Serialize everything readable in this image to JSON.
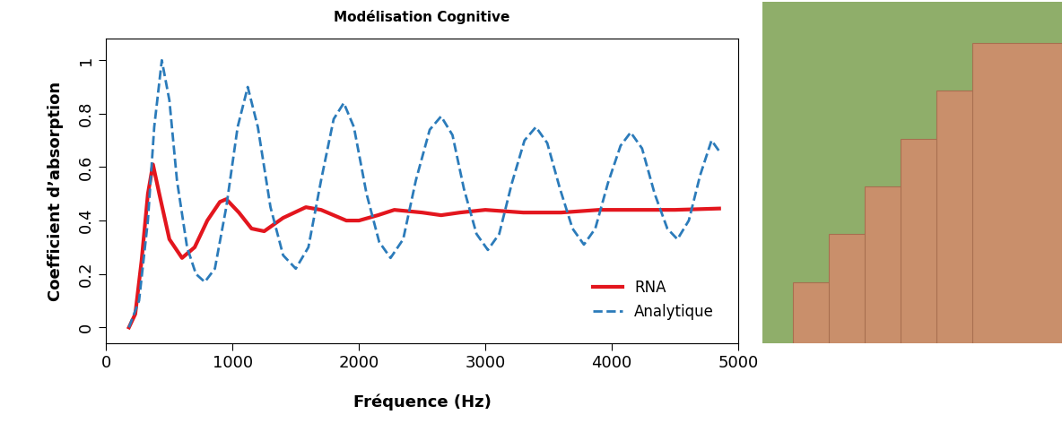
{
  "chart_data": {
    "type": "line",
    "title": "Modélisation Cognitive",
    "x_label": "Fréquence (Hz)",
    "y_label": "Coefficient d’absorption",
    "xlim": [
      0,
      5000
    ],
    "xticks": [
      0,
      1000,
      2000,
      3000,
      4000,
      5000
    ],
    "ylim": [
      -0.06,
      1.08
    ],
    "yticks": [
      0,
      0.2,
      0.4,
      0.6,
      0.8,
      1
    ],
    "legend": "lower right",
    "grid": false,
    "series": [
      {
        "name": "RNA",
        "color": "#e3161e",
        "line_style": "solid",
        "x": [
          180,
          230,
          280,
          330,
          370,
          420,
          500,
          600,
          700,
          800,
          900,
          950,
          1050,
          1150,
          1250,
          1400,
          1580,
          1700,
          1900,
          2000,
          2150,
          2280,
          2500,
          2650,
          2800,
          3000,
          3300,
          3600,
          3900,
          4200,
          4500,
          4850
        ],
        "values": [
          0.0,
          0.05,
          0.25,
          0.5,
          0.61,
          0.5,
          0.33,
          0.26,
          0.3,
          0.4,
          0.47,
          0.48,
          0.43,
          0.37,
          0.36,
          0.41,
          0.45,
          0.44,
          0.4,
          0.4,
          0.42,
          0.44,
          0.43,
          0.42,
          0.43,
          0.44,
          0.43,
          0.43,
          0.44,
          0.44,
          0.44,
          0.445
        ]
      },
      {
        "name": "Analytique",
        "color": "#2b7bba",
        "line_style": "dashed",
        "x": [
          180,
          260,
          330,
          380,
          440,
          500,
          560,
          640,
          710,
          780,
          860,
          950,
          1040,
          1120,
          1200,
          1300,
          1400,
          1500,
          1600,
          1700,
          1800,
          1880,
          1960,
          2060,
          2160,
          2250,
          2350,
          2450,
          2560,
          2650,
          2740,
          2830,
          2930,
          3020,
          3110,
          3210,
          3310,
          3400,
          3490,
          3590,
          3690,
          3780,
          3870,
          3970,
          4070,
          4150,
          4240,
          4340,
          4440,
          4520,
          4610,
          4700,
          4790,
          4850
        ],
        "values": [
          0.0,
          0.1,
          0.4,
          0.75,
          1.0,
          0.85,
          0.55,
          0.3,
          0.2,
          0.17,
          0.22,
          0.45,
          0.75,
          0.9,
          0.75,
          0.45,
          0.27,
          0.22,
          0.3,
          0.55,
          0.78,
          0.84,
          0.75,
          0.5,
          0.32,
          0.26,
          0.33,
          0.55,
          0.74,
          0.79,
          0.72,
          0.52,
          0.35,
          0.29,
          0.35,
          0.54,
          0.7,
          0.75,
          0.69,
          0.52,
          0.37,
          0.31,
          0.37,
          0.54,
          0.68,
          0.73,
          0.67,
          0.5,
          0.37,
          0.33,
          0.4,
          0.57,
          0.7,
          0.66
        ]
      }
    ]
  }
}
